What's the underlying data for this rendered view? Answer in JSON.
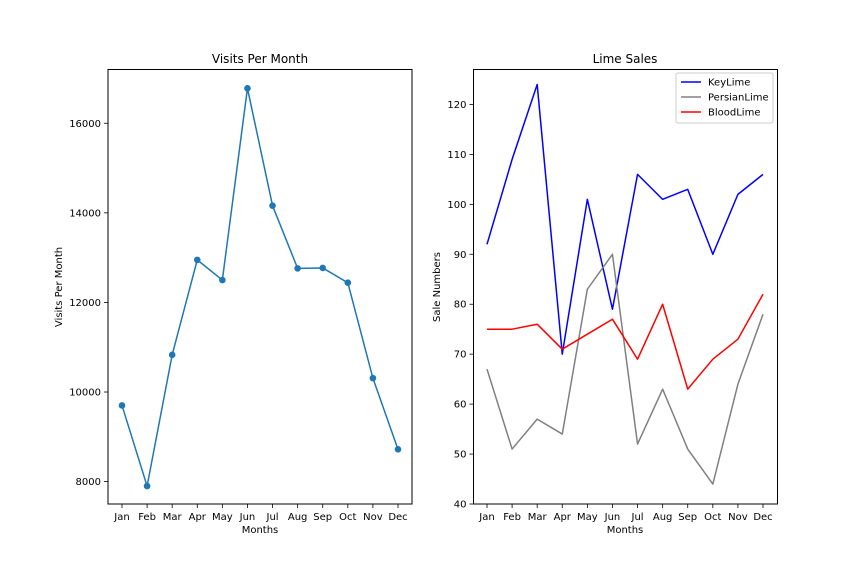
{
  "chart_data": [
    {
      "type": "line",
      "title": "Visits Per Month",
      "xlabel": "Months",
      "ylabel": "Visits Per Month",
      "categories": [
        "Jan",
        "Feb",
        "Mar",
        "Apr",
        "May",
        "Jun",
        "Jul",
        "Aug",
        "Sep",
        "Oct",
        "Nov",
        "Dec"
      ],
      "series": [
        {
          "values": [
            9700,
            7900,
            10830,
            12950,
            12500,
            16780,
            14160,
            12760,
            12770,
            12440,
            10310,
            8720
          ],
          "color": "#1f77b4",
          "markers": true
        }
      ],
      "ylim": [
        7500,
        17200
      ],
      "yticks": [
        8000,
        10000,
        12000,
        14000,
        16000
      ],
      "grid": false
    },
    {
      "type": "line",
      "title": "Lime Sales",
      "xlabel": "Months",
      "ylabel": "Sale Numbers",
      "categories": [
        "Jan",
        "Feb",
        "Mar",
        "Apr",
        "May",
        "Jun",
        "Jul",
        "Aug",
        "Sep",
        "Oct",
        "Nov",
        "Dec"
      ],
      "series": [
        {
          "name": "KeyLime",
          "values": [
            92,
            109,
            124,
            70,
            101,
            79,
            106,
            101,
            103,
            90,
            102,
            106
          ],
          "color": "#0000ff"
        },
        {
          "name": "PersianLime",
          "values": [
            67,
            51,
            57,
            54,
            83,
            90,
            52,
            63,
            51,
            44,
            64,
            78
          ],
          "color": "#808080"
        },
        {
          "name": "BloodLime",
          "values": [
            75,
            75,
            76,
            71,
            74,
            77,
            69,
            80,
            63,
            69,
            73,
            82
          ],
          "color": "#ff0000"
        }
      ],
      "ylim": [
        40,
        127
      ],
      "yticks": [
        40,
        50,
        60,
        70,
        80,
        90,
        100,
        110,
        120
      ],
      "legend": "top-right",
      "grid": false
    }
  ]
}
